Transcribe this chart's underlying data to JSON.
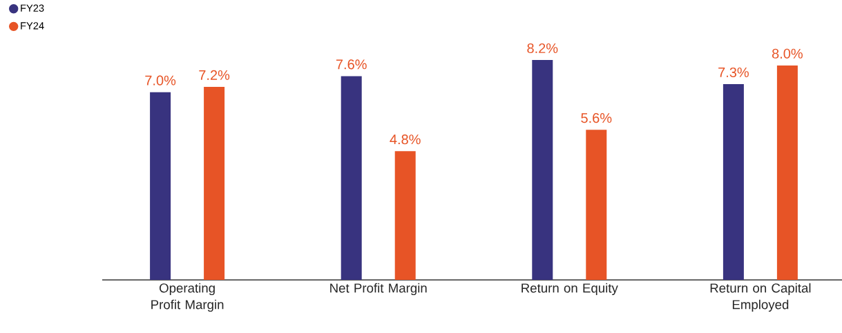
{
  "chart_data": {
    "type": "bar",
    "categories": [
      "Operating Profit Margin",
      "Net Profit Margin",
      "Return on Equity",
      "Return on Capital Employed"
    ],
    "series": [
      {
        "name": "FY23",
        "color": "#38337f",
        "values": [
          7.0,
          7.6,
          8.2,
          7.3
        ],
        "value_labels": [
          "7.0%",
          "7.6%",
          "8.2%",
          "7.3%"
        ]
      },
      {
        "name": "FY24",
        "color": "#e75426",
        "values": [
          7.2,
          4.8,
          5.6,
          8.0
        ],
        "value_labels": [
          "7.2%",
          "4.8%",
          "5.6%",
          "8.0%"
        ]
      }
    ],
    "legend": "top left"
  }
}
